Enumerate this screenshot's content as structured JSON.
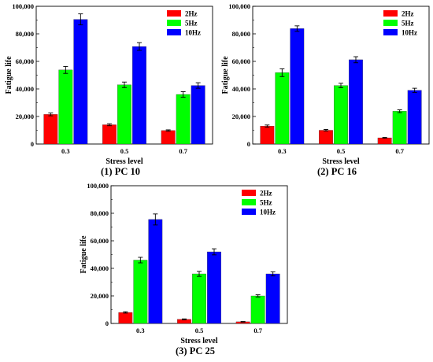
{
  "chart_data": [
    {
      "type": "bar",
      "caption": "(1) PC 10",
      "xlabel": "Stress level",
      "ylabel": "Fatigue life",
      "categories": [
        "0.3",
        "0.5",
        "0.7"
      ],
      "ylim": [
        0,
        100000
      ],
      "yticks": [
        "0",
        "20,000",
        "40,000",
        "60,000",
        "80,000",
        "100,000"
      ],
      "legend_position": "top-right",
      "series": [
        {
          "name": "2Hz",
          "color": "#ff0000",
          "values": [
            21500,
            14000,
            9800
          ],
          "errors": [
            1000,
            700,
            500
          ]
        },
        {
          "name": "5Hz",
          "color": "#00ff00",
          "values": [
            53800,
            43000,
            36000
          ],
          "errors": [
            2500,
            2000,
            2000
          ]
        },
        {
          "name": "10Hz",
          "color": "#0000ff",
          "values": [
            90500,
            70800,
            42500
          ],
          "errors": [
            4000,
            2800,
            2000
          ]
        }
      ]
    },
    {
      "type": "bar",
      "caption": "(2) PC 16",
      "xlabel": "Stress level",
      "ylabel": "Fatigue life",
      "categories": [
        "0.3",
        "0.5",
        "0.7"
      ],
      "ylim": [
        0,
        100000
      ],
      "yticks": [
        "0",
        "20,000",
        "40,000",
        "60,000",
        "80,000",
        "100,000"
      ],
      "legend_position": "top-right",
      "series": [
        {
          "name": "2Hz",
          "color": "#ff0000",
          "values": [
            13000,
            10000,
            4500
          ],
          "errors": [
            800,
            600,
            300
          ]
        },
        {
          "name": "5Hz",
          "color": "#00ff00",
          "values": [
            51800,
            42500,
            23800
          ],
          "errors": [
            2800,
            1600,
            1000
          ]
        },
        {
          "name": "10Hz",
          "color": "#0000ff",
          "values": [
            83800,
            61200,
            39000
          ],
          "errors": [
            2000,
            2200,
            1500
          ]
        }
      ]
    },
    {
      "type": "bar",
      "caption": "(3) PC 25",
      "xlabel": "Stress level",
      "ylabel": "Fatigue life",
      "categories": [
        "0.3",
        "0.5",
        "0.7"
      ],
      "ylim": [
        0,
        100000
      ],
      "yticks": [
        "0",
        "20,000",
        "40,000",
        "60,000",
        "80,000",
        "100,000"
      ],
      "legend_position": "top-right",
      "series": [
        {
          "name": "2Hz",
          "color": "#ff0000",
          "values": [
            8000,
            3000,
            1200
          ],
          "errors": [
            500,
            300,
            200
          ]
        },
        {
          "name": "5Hz",
          "color": "#00ff00",
          "values": [
            46000,
            36000,
            20000
          ],
          "errors": [
            2000,
            1800,
            800
          ]
        },
        {
          "name": "10Hz",
          "color": "#0000ff",
          "values": [
            75500,
            52000,
            36000
          ],
          "errors": [
            4000,
            2200,
            1500
          ]
        }
      ]
    }
  ]
}
